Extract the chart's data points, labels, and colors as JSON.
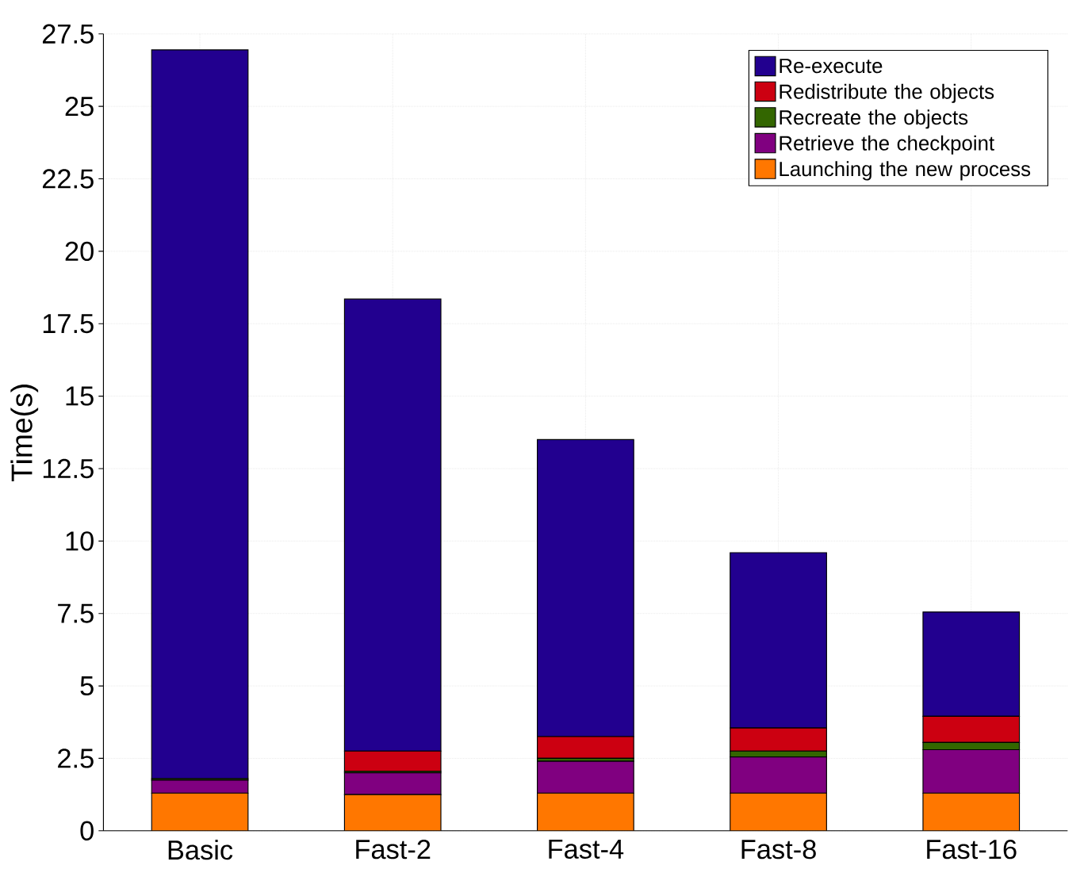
{
  "chart_data": {
    "type": "bar",
    "stacked": true,
    "ylabel": "Time(s)",
    "categories": [
      "Basic",
      "Fast-2",
      "Fast-4",
      "Fast-8",
      "Fast-16"
    ],
    "series": [
      {
        "name": "Launching the new process",
        "color": "#ff7700",
        "values": [
          1.3,
          1.25,
          1.3,
          1.3,
          1.3
        ]
      },
      {
        "name": "Retrieve the checkpoint",
        "color": "#800080",
        "values": [
          0.45,
          0.75,
          1.1,
          1.25,
          1.5
        ]
      },
      {
        "name": "Recreate the objects",
        "color": "#336600",
        "values": [
          0.05,
          0.05,
          0.1,
          0.2,
          0.25
        ]
      },
      {
        "name": "Redistribute the objects",
        "color": "#cc0011",
        "values": [
          null,
          0.7,
          0.75,
          0.8,
          0.9
        ]
      },
      {
        "name": "Re-execute",
        "color": "#22008f",
        "values": [
          25.15,
          15.6,
          10.25,
          6.05,
          3.6
        ]
      }
    ],
    "ylim": [
      0,
      27.5
    ],
    "yticks": [
      0,
      2.5,
      5,
      7.5,
      10,
      12.5,
      15,
      17.5,
      20,
      22.5,
      25,
      27.5
    ],
    "grid": true,
    "legend": "top right"
  }
}
